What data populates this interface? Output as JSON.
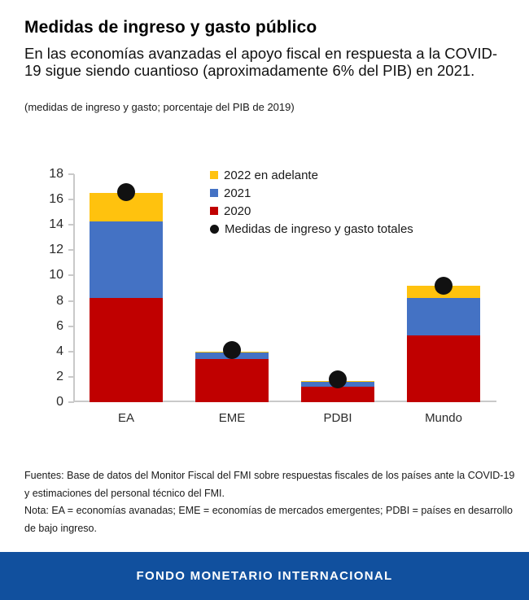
{
  "header": {
    "title": "Medidas de ingreso y gasto público",
    "subtitle": "En las economías avanzadas el apoyo fiscal en respuesta a la COVID-19 sigue siendo cuantioso (aproximadamente 6% del PIB) en 2021.",
    "unit_note": "(medidas de ingreso y gasto; porcentaje del PIB de 2019)"
  },
  "chart_data": {
    "type": "bar",
    "stacked": true,
    "title": "Medidas de ingreso y gasto público",
    "xlabel": "",
    "ylabel": "",
    "categories": [
      "EA",
      "EME",
      "PDBI",
      "Mundo"
    ],
    "series": [
      {
        "name": "2020",
        "color": "#C00000",
        "values": [
          8.2,
          3.4,
          1.2,
          5.3
        ]
      },
      {
        "name": "2021",
        "color": "#4472C4",
        "values": [
          6.1,
          0.5,
          0.4,
          2.9
        ]
      },
      {
        "name": "2022 en adelante",
        "color": "#FFC20E",
        "values": [
          2.2,
          0.1,
          0.1,
          1.0
        ]
      }
    ],
    "dot_series": {
      "name": "Medidas de ingreso y gasto totales",
      "color": "#111111",
      "values": [
        16.6,
        4.1,
        1.8,
        9.2
      ]
    },
    "legend_order": [
      "2022 en adelante",
      "2021",
      "2020",
      "Medidas de ingreso y gasto totales"
    ],
    "legend_position": "top-inside",
    "ylim": [
      0,
      18
    ],
    "ytick_step": 2,
    "grid": false,
    "axis_color": "#c9c9c9"
  },
  "footnotes": {
    "sources": "Fuentes: Base de datos del Monitor Fiscal del FMI sobre respuestas fiscales de los países ante la COVID-19 y estimaciones del personal técnico del FMI.",
    "note": "Nota: EA = economías avanadas; EME = economías de mercados emergentes; PDBI = países en desarrollo de bajo ingreso."
  },
  "footer": {
    "label": "FONDO MONETARIO INTERNACIONAL",
    "background": "#11509E"
  }
}
